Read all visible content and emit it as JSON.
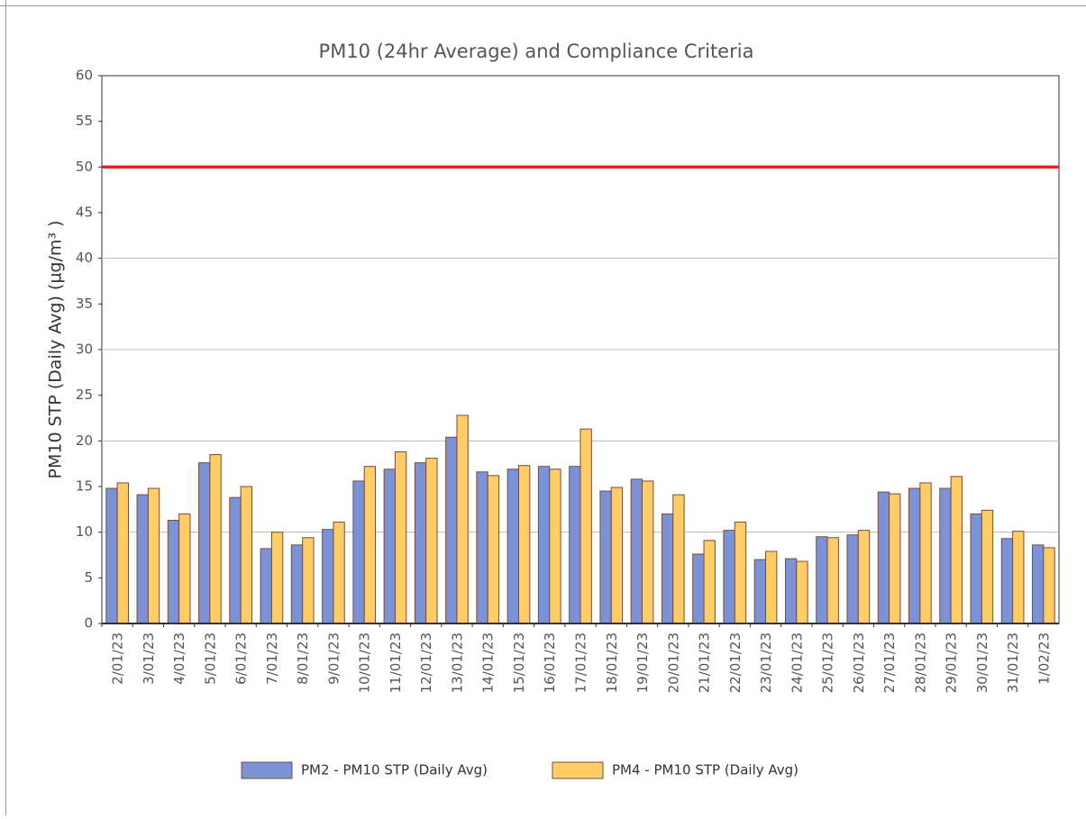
{
  "chart_data": {
    "type": "bar",
    "title": "PM10 (24hr Average) and Compliance Criteria",
    "y_label": "PM10 STP (Daily Avg) (µg/m³ )",
    "categories": [
      "2/01/23",
      "3/01/23",
      "4/01/23",
      "5/01/23",
      "6/01/23",
      "7/01/23",
      "8/01/23",
      "9/01/23",
      "10/01/23",
      "11/01/23",
      "12/01/23",
      "13/01/23",
      "14/01/23",
      "15/01/23",
      "16/01/23",
      "17/01/23",
      "18/01/23",
      "19/01/23",
      "20/01/23",
      "21/01/23",
      "22/01/23",
      "23/01/23",
      "24/01/23",
      "25/01/23",
      "26/01/23",
      "27/01/23",
      "28/01/23",
      "29/01/23",
      "30/01/23",
      "31/01/23",
      "1/02/23"
    ],
    "series": [
      {
        "name": "PM2 - PM10 STP (Daily Avg)",
        "color": "#7b93d6",
        "values": [
          14.8,
          14.1,
          11.3,
          17.6,
          13.8,
          8.2,
          8.6,
          10.3,
          15.6,
          16.9,
          17.6,
          20.4,
          16.6,
          16.9,
          17.2,
          17.2,
          14.5,
          15.8,
          12.0,
          7.6,
          10.2,
          7.0,
          7.1,
          9.5,
          9.7,
          14.4,
          14.8,
          14.8,
          12.0,
          9.3,
          8.6
        ]
      },
      {
        "name": "PM4 - PM10 STP (Daily Avg)",
        "color": "#ffcc66",
        "values": [
          15.4,
          14.8,
          12.0,
          18.5,
          15.0,
          10.0,
          9.4,
          11.1,
          17.2,
          18.8,
          18.1,
          22.8,
          16.2,
          17.3,
          16.9,
          21.3,
          14.9,
          15.6,
          14.1,
          9.1,
          11.1,
          7.9,
          6.8,
          9.4,
          10.2,
          14.2,
          15.4,
          16.1,
          12.4,
          10.1,
          8.3
        ]
      }
    ],
    "criteria": {
      "value": 50,
      "color": "#e8202a"
    },
    "ylim": [
      0,
      60
    ],
    "yticks": [
      0,
      5,
      10,
      15,
      20,
      25,
      30,
      35,
      40,
      45,
      50,
      55,
      60
    ],
    "ygrid": [
      10,
      20,
      30,
      40
    ],
    "legend": "bottom"
  }
}
